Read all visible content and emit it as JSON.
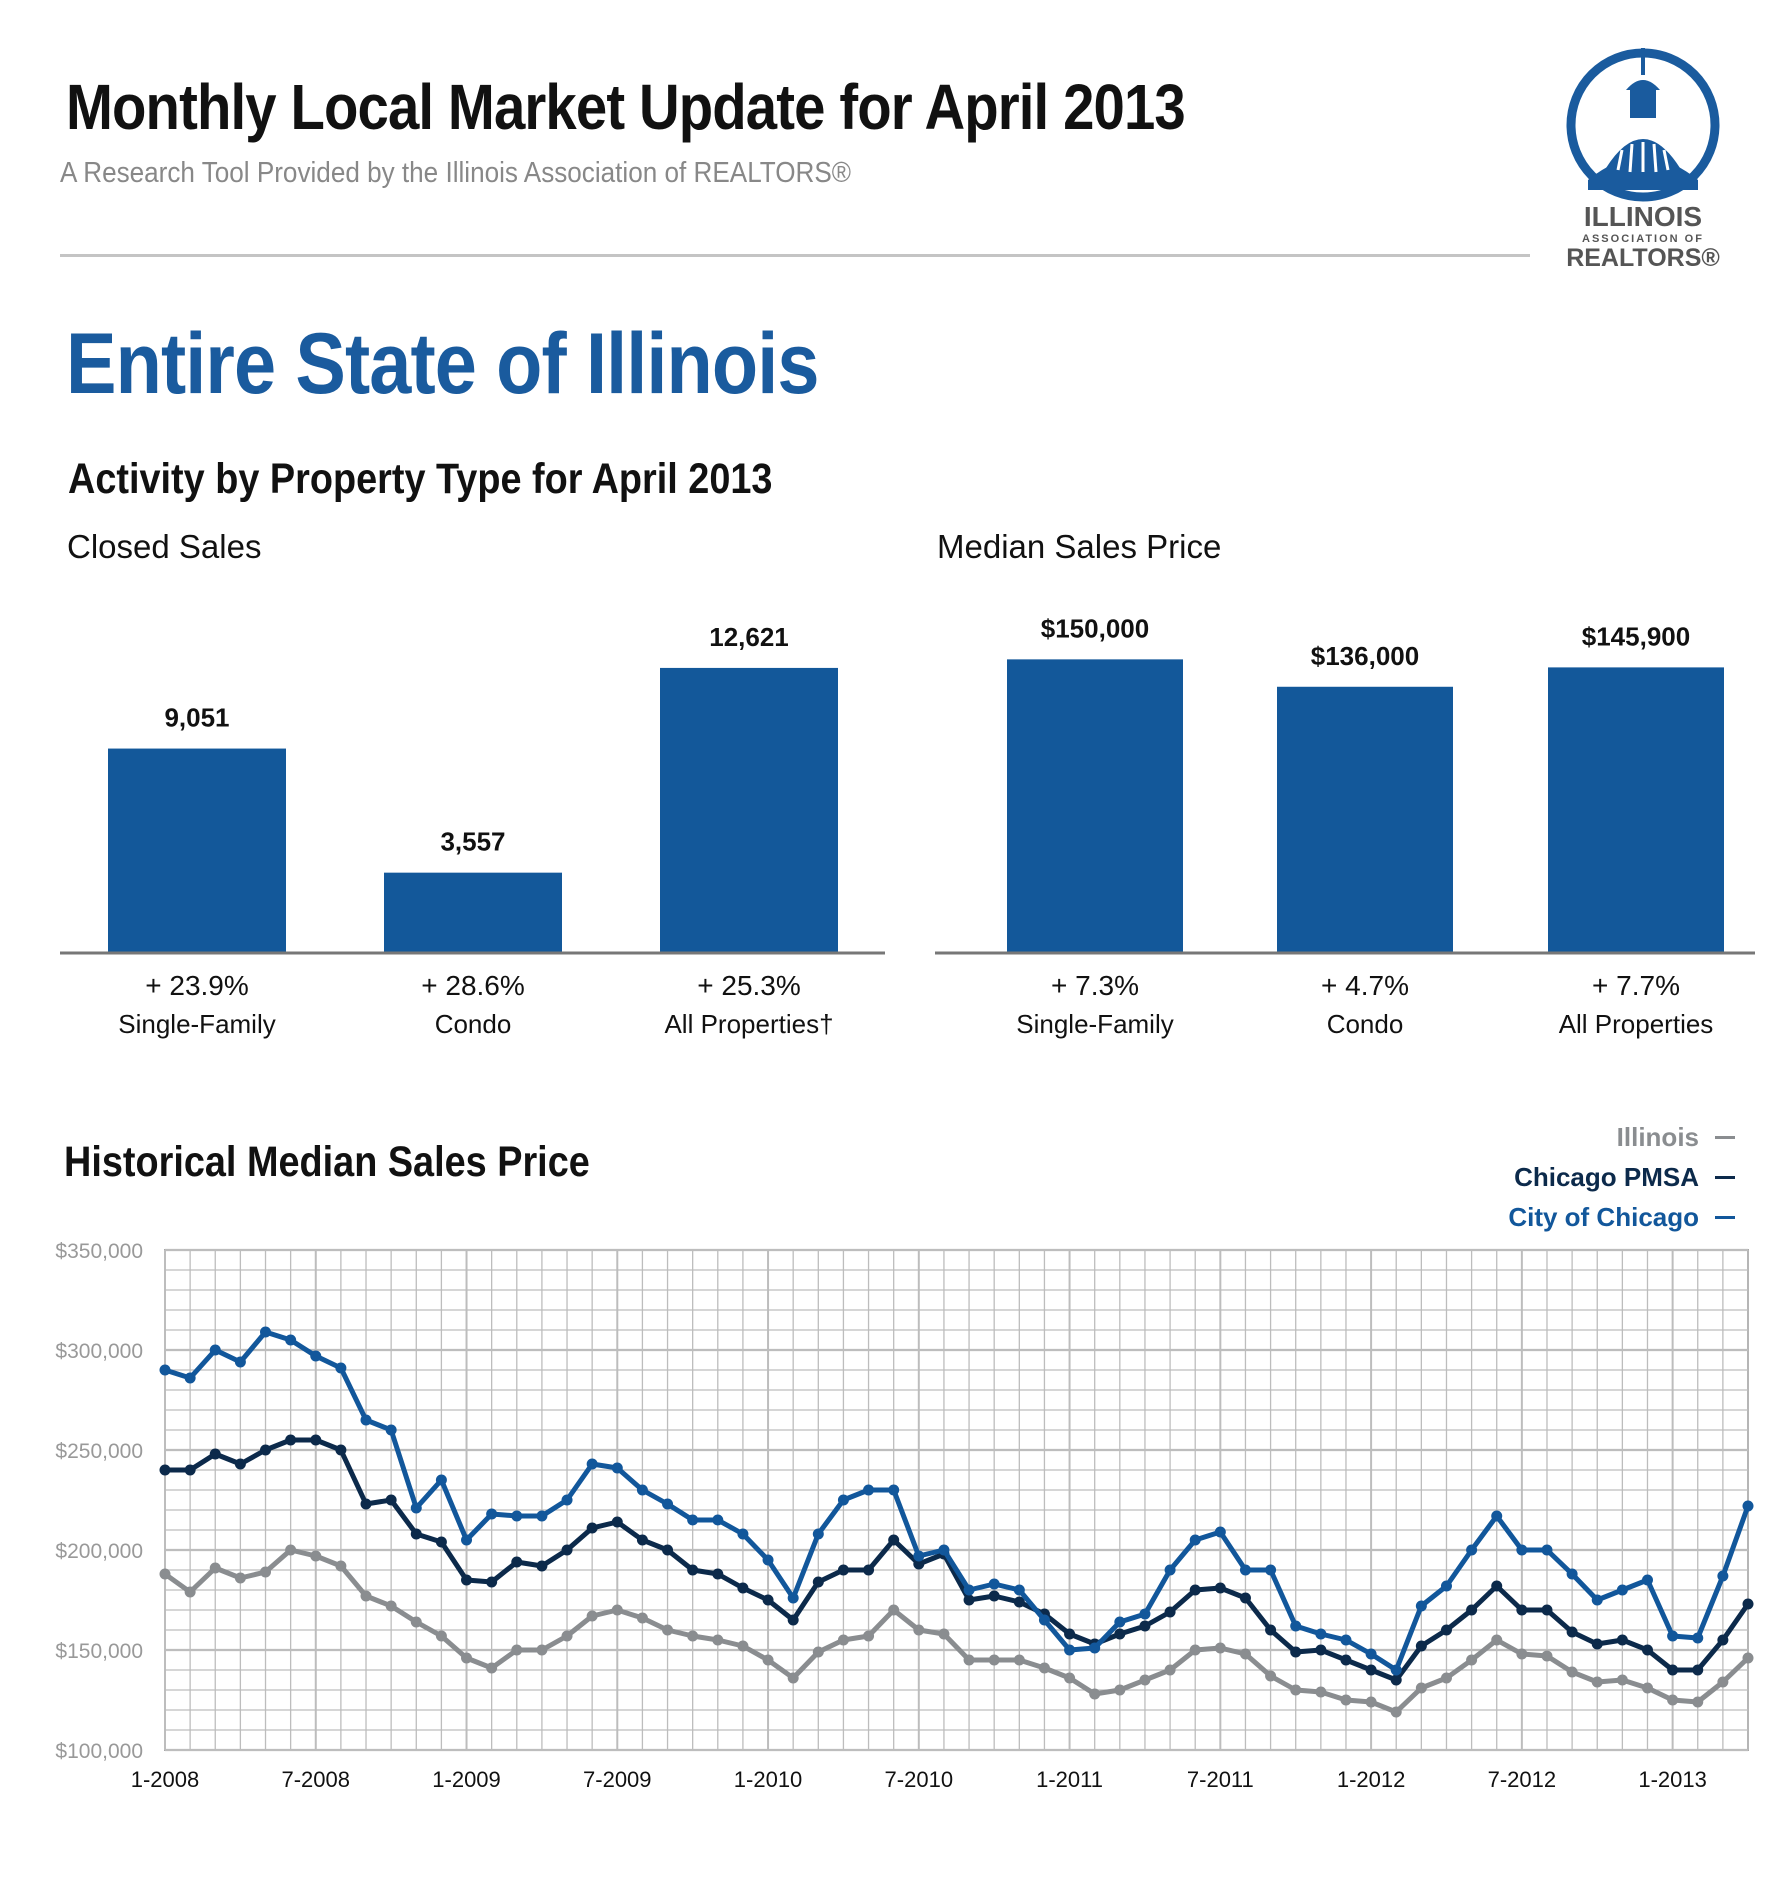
{
  "header": {
    "title": "Monthly Local Market Update for April 2013",
    "subtitle": "A Research Tool Provided by the Illinois Association of REALTORS®",
    "logo": {
      "line1": "ILLINOIS",
      "line2": "ASSOCIATION OF",
      "line3": "REALTORS®",
      "color": "#1a5b9e"
    }
  },
  "region_title": "Entire State of Illinois",
  "activity_heading": "Activity by Property Type for April 2013",
  "historical_heading": "Historical Median Sales Price",
  "colors": {
    "bar": "#13589a",
    "illinois": "#8a8d90",
    "chicago_pmsa": "#0c2a4b",
    "city_of_chicago": "#12579b",
    "grid": "#bdbdbd"
  },
  "chart_data": [
    {
      "type": "bar",
      "title": "Closed Sales",
      "categories": [
        "Single-Family",
        "Condo",
        "All Properties†"
      ],
      "values": [
        9051,
        3557,
        12621
      ],
      "value_labels": [
        "9,051",
        "3,557",
        "12,621"
      ],
      "changes": [
        "+ 23.9%",
        "+ 28.6%",
        "+ 25.3%"
      ],
      "ylim": [
        0,
        14300
      ]
    },
    {
      "type": "bar",
      "title": "Median Sales Price",
      "categories": [
        "Single-Family",
        "Condo",
        "All Properties"
      ],
      "values": [
        150000,
        136000,
        145900
      ],
      "value_labels": [
        "$150,000",
        "$136,000",
        "$145,900"
      ],
      "changes": [
        "+ 7.3%",
        "+ 4.7%",
        "+ 7.7%"
      ],
      "ylim": [
        0,
        165000
      ]
    },
    {
      "type": "line",
      "title": "Historical Median Sales Price",
      "x_tick_labels": [
        "1-2008",
        "7-2008",
        "1-2009",
        "7-2009",
        "1-2010",
        "7-2010",
        "1-2011",
        "7-2011",
        "1-2012",
        "7-2012",
        "1-2013"
      ],
      "y_tick_labels": [
        "$100,000",
        "$150,000",
        "$200,000",
        "$250,000",
        "$300,000",
        "$350,000"
      ],
      "ylim": [
        100000,
        350000
      ],
      "x_start": "1-2008",
      "x_end": "4-2013",
      "grid": true,
      "legend_position": "top-right",
      "series": [
        {
          "name": "Illinois",
          "color_key": "illinois",
          "values": [
            188000,
            179000,
            191000,
            186000,
            189000,
            200000,
            197000,
            192000,
            177000,
            172000,
            164000,
            157000,
            146000,
            141000,
            150000,
            150000,
            157000,
            167000,
            170000,
            166000,
            160000,
            157000,
            155000,
            152000,
            145000,
            136000,
            149000,
            155000,
            157000,
            170000,
            160000,
            158000,
            145000,
            145000,
            145000,
            141000,
            136000,
            128000,
            130000,
            135000,
            140000,
            150000,
            151000,
            148000,
            137000,
            130000,
            129000,
            125000,
            124000,
            119000,
            131000,
            136000,
            145000,
            155000,
            148000,
            147000,
            139000,
            134000,
            135000,
            131000,
            125000,
            124000,
            134000,
            146000
          ]
        },
        {
          "name": "Chicago PMSA",
          "color_key": "chicago_pmsa",
          "values": [
            240000,
            240000,
            248000,
            243000,
            250000,
            255000,
            255000,
            250000,
            223000,
            225000,
            208000,
            204000,
            185000,
            184000,
            194000,
            192000,
            200000,
            211000,
            214000,
            205000,
            200000,
            190000,
            188000,
            181000,
            175000,
            165000,
            184000,
            190000,
            190000,
            205000,
            193000,
            198000,
            175000,
            177000,
            174000,
            168000,
            158000,
            153000,
            158000,
            162000,
            169000,
            180000,
            181000,
            176000,
            160000,
            149000,
            150000,
            145000,
            140000,
            135000,
            152000,
            160000,
            170000,
            182000,
            170000,
            170000,
            159000,
            153000,
            155000,
            150000,
            140000,
            140000,
            155000,
            173000
          ]
        },
        {
          "name": "City of Chicago",
          "color_key": "city_of_chicago",
          "values": [
            290000,
            286000,
            300000,
            294000,
            309000,
            305000,
            297000,
            291000,
            265000,
            260000,
            221000,
            235000,
            205000,
            218000,
            217000,
            217000,
            225000,
            243000,
            241000,
            230000,
            223000,
            215000,
            215000,
            208000,
            195000,
            176000,
            208000,
            225000,
            230000,
            230000,
            197000,
            200000,
            180000,
            183000,
            180000,
            165000,
            150000,
            151000,
            164000,
            168000,
            190000,
            205000,
            209000,
            190000,
            190000,
            162000,
            158000,
            155000,
            148000,
            140000,
            172000,
            182000,
            200000,
            217000,
            200000,
            200000,
            188000,
            175000,
            180000,
            185000,
            157000,
            156000,
            187000,
            222000
          ]
        }
      ]
    }
  ]
}
